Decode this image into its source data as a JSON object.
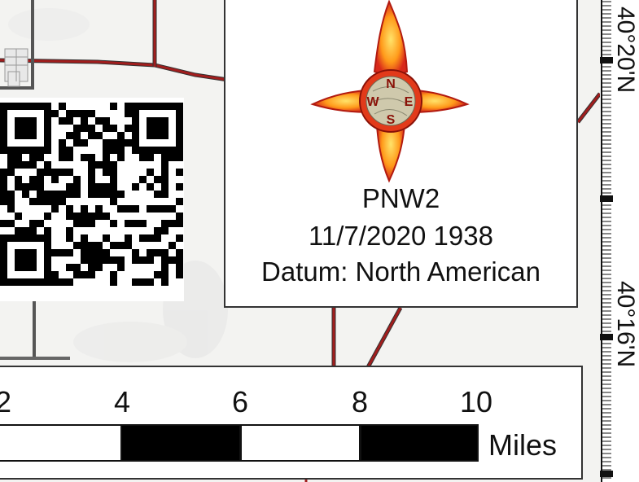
{
  "compass": {
    "north": "N",
    "south": "S",
    "east": "E",
    "west": "W"
  },
  "legend": {
    "map_name": "PNW2",
    "date_time": "11/7/2020 1938",
    "datum": "Datum: North American"
  },
  "scale_bar": {
    "tick_labels": [
      "2",
      "4",
      "6",
      "8",
      "10"
    ],
    "units": "Miles"
  },
  "graticule": {
    "lat_top": "40°20'N",
    "lat_bottom": "40°16'N"
  },
  "colors": {
    "road": "#8b1a1a",
    "flame_outer": "#e8451a",
    "flame_inner": "#ffd21a",
    "compass_disc": "#c9c3a8"
  }
}
